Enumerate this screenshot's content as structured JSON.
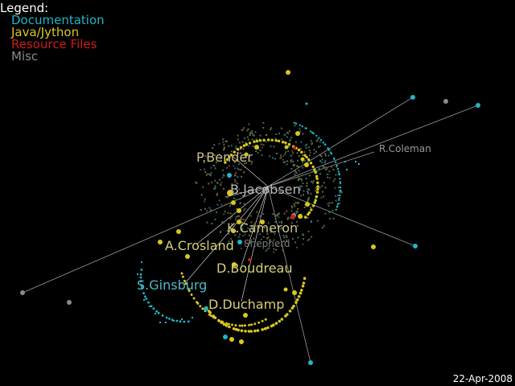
{
  "legend": {
    "title": "Legend:",
    "items": [
      {
        "label": "Documentation",
        "color": "#1fb6c8"
      },
      {
        "label": "Java/Jython",
        "color": "#d8c81c"
      },
      {
        "label": "Resource Files",
        "color": "#d01a1a"
      },
      {
        "label": "Misc",
        "color": "#8a8a8a"
      }
    ]
  },
  "authors": [
    {
      "name": "P.Bender",
      "color": "#c9c28a"
    },
    {
      "name": "R.Coleman",
      "color": "#9a9a9a"
    },
    {
      "name": "B.Jacobsen",
      "color": "#b8b8b8"
    },
    {
      "name": "K.Cameron",
      "color": "#c9c28a"
    },
    {
      "name": "Shepherd",
      "color": "#7a7a7a"
    },
    {
      "name": "A.Crosland",
      "color": "#d6cf7a"
    },
    {
      "name": "D.Boudreau",
      "color": "#d6cf7a"
    },
    {
      "name": "S.Ginsburg",
      "color": "#4fb8c8"
    },
    {
      "name": "D.Duchamp",
      "color": "#d6cf7a"
    }
  ],
  "date": "22-Apr-2008"
}
